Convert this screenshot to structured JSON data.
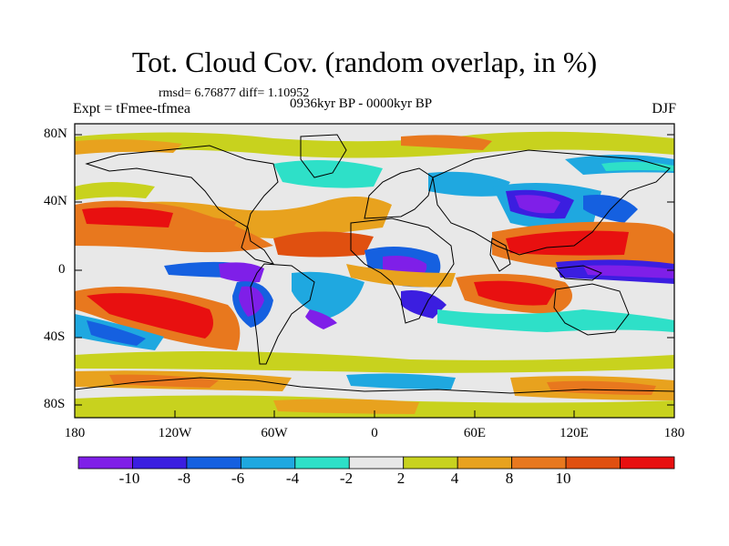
{
  "title": "Tot. Cloud Cov. (random overlap, in %)",
  "stats": "rmsd= 6.76877 diff= 1.10952",
  "experiment": "Expt = tFmee-tfmea",
  "period": "0936kyr BP - 0000kyr BP",
  "season": "DJF",
  "lat_ticks": [
    "80N",
    "40N",
    "0",
    "40S",
    "80S"
  ],
  "lon_ticks": [
    "180",
    "120W",
    "60W",
    "0",
    "60E",
    "120E",
    "180"
  ],
  "colorbar": {
    "labels": [
      "-10",
      "-8",
      "-6",
      "-4",
      "-2",
      "2",
      "4",
      "8",
      "10"
    ],
    "colors": [
      "#7f1fe8",
      "#3b1ee0",
      "#1560e0",
      "#1fa8e0",
      "#2ee0c8",
      "#e8e8e8",
      "#c8d21e",
      "#e8a21e",
      "#e8781e",
      "#e05010",
      "#e81010"
    ]
  }
}
